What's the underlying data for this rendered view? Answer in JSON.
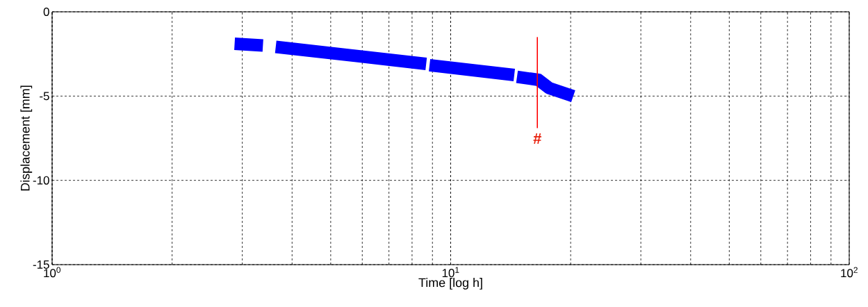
{
  "chart_data": {
    "type": "line",
    "xlabel": "Time [log h]",
    "ylabel": "Displacement [mm]",
    "log": "x",
    "xlim": [
      1,
      100
    ],
    "ylim": [
      -15,
      0
    ],
    "xticks": [
      {
        "value": 1,
        "label": "10$^{0}$"
      },
      {
        "value": 10,
        "label": "10$^{1}$"
      },
      {
        "value": 100,
        "label": "10$^{2}$"
      }
    ],
    "yticks": [
      -15,
      -10,
      -5,
      0
    ],
    "grid": true,
    "marker": "none",
    "line_style": "solid",
    "series": [
      {
        "color": "#0000ff",
        "x": [
          2.87,
          3.38,
          3.5,
          3.64,
          8.68,
          8.77,
          8.85,
          14.44,
          14.55,
          14.67,
          16.62,
          17.65,
          20.3
        ],
        "values": [
          -1.9,
          -2.0,
          null,
          -2.08,
          -3.09,
          null,
          -3.17,
          -3.75,
          null,
          -3.86,
          -4.04,
          -4.52,
          -5.01
        ]
      },
      {
        "color": "#ff0000",
        "x": [
          16.5,
          16.5
        ],
        "values": [
          -1.5,
          -6.9
        ]
      }
    ],
    "annotations": [
      "#"
    ]
  }
}
